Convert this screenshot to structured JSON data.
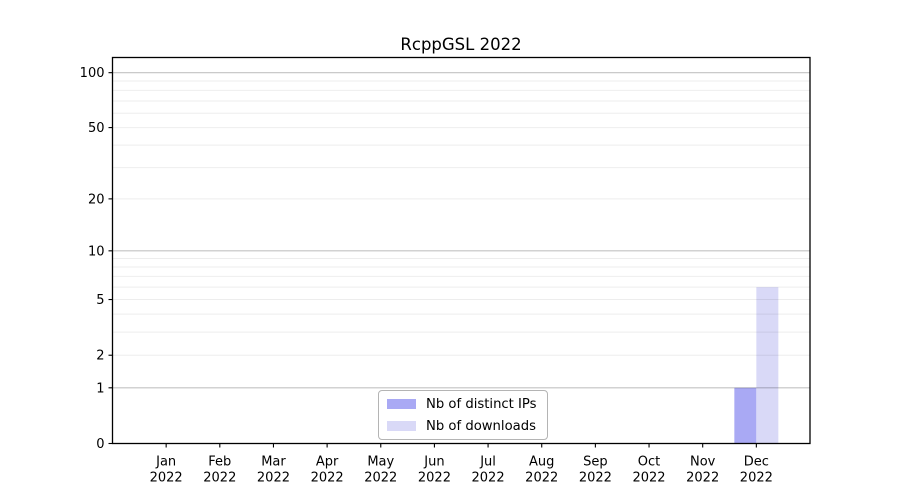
{
  "chart_data": {
    "type": "bar",
    "title": "RcppGSL 2022",
    "categories": [
      "Jan",
      "Feb",
      "Mar",
      "Apr",
      "May",
      "Jun",
      "Jul",
      "Aug",
      "Sep",
      "Oct",
      "Nov",
      "Dec"
    ],
    "year_label": "2022",
    "series": [
      {
        "name": "Nb of distinct IPs",
        "color": "#a9a9f4",
        "values": [
          0,
          0,
          0,
          0,
          0,
          0,
          0,
          0,
          0,
          0,
          0,
          1
        ]
      },
      {
        "name": "Nb of downloads",
        "color": "#d9d9f7",
        "values": [
          0,
          0,
          0,
          0,
          0,
          0,
          0,
          0,
          0,
          0,
          0,
          6
        ]
      }
    ],
    "xlabel": "",
    "ylabel": "",
    "y_scale": "log1p",
    "ylim": [
      0,
      121
    ],
    "y_ticks": [
      0,
      1,
      2,
      5,
      10,
      20,
      50,
      100
    ],
    "y_major_gridlines": [
      1,
      10,
      100
    ],
    "y_minor_gridlines": [
      2,
      3,
      4,
      5,
      6,
      7,
      8,
      9,
      20,
      30,
      40,
      50,
      60,
      70,
      80,
      90
    ],
    "grid": true,
    "legend_position": "inside-bottom-center",
    "colors": {
      "axis": "#000000",
      "major_grid": "#c3c3c3",
      "minor_grid": "#ececec",
      "background": "#ffffff"
    }
  }
}
